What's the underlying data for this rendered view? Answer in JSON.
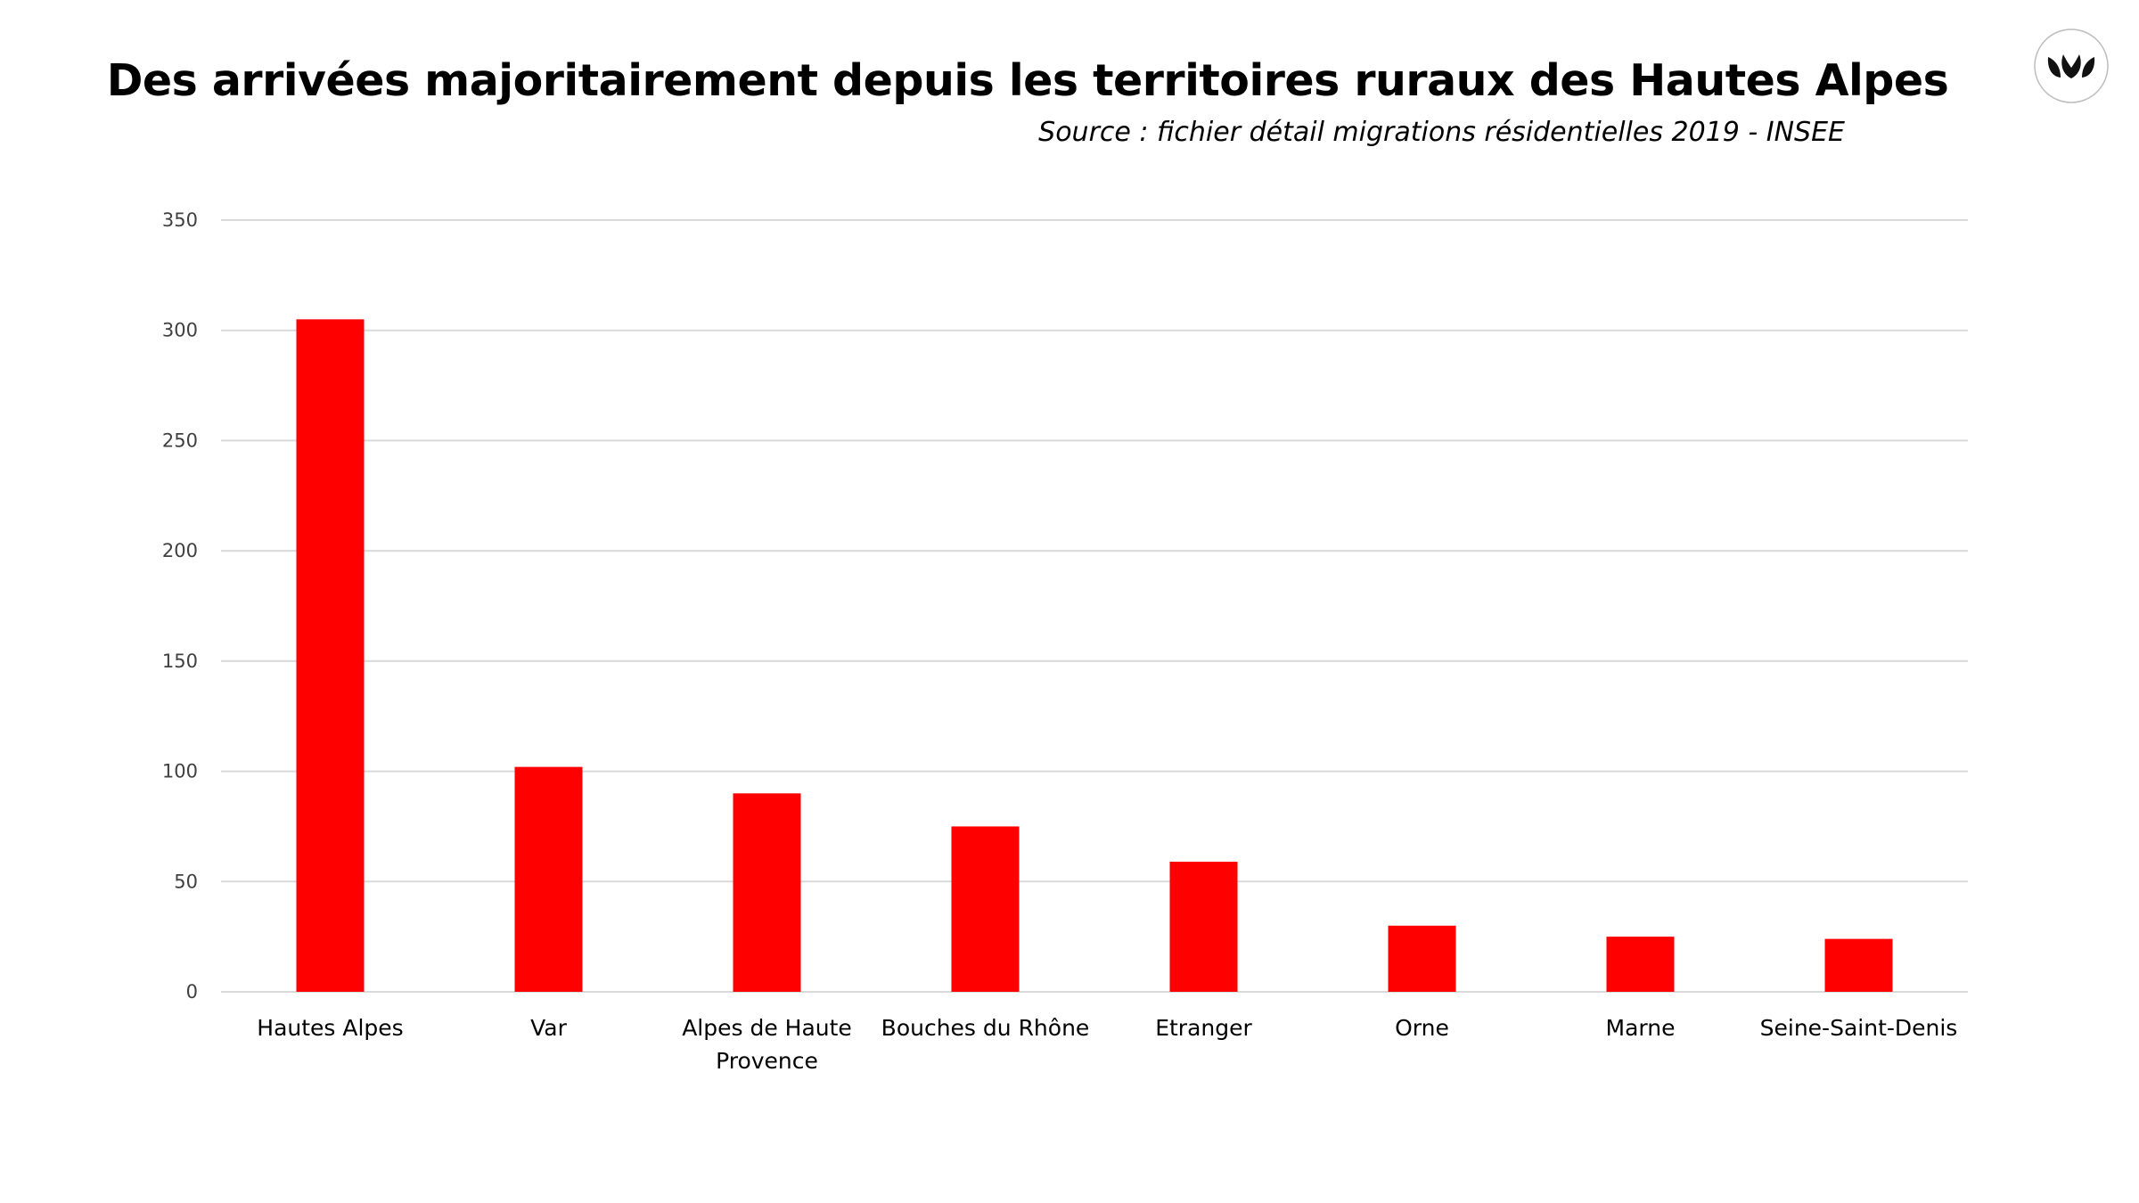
{
  "header": {
    "title": "Des arrivées majoritairement depuis les territoires ruraux des Hautes Alpes",
    "source": "Source : fichier détail migrations résidentielles 2019 - INSEE"
  },
  "logo": {
    "icon": "leaf-pair-logo-icon"
  },
  "colors": {
    "bar": "#ff0000",
    "grid": "#d9d9d9",
    "tick_text": "#404040"
  },
  "chart_data": {
    "type": "bar",
    "title": "Des arrivées majoritairement depuis les territoires ruraux des Hautes Alpes",
    "subtitle": "Source : fichier détail migrations résidentielles 2019 - INSEE",
    "xlabel": "",
    "ylabel": "",
    "categories": [
      "Hautes Alpes",
      "Var",
      "Alpes de Haute Provence",
      "Bouches du Rhône",
      "Etranger",
      "Orne",
      "Marne",
      "Seine-Saint-Denis"
    ],
    "category_lines": [
      [
        "Hautes Alpes"
      ],
      [
        "Var"
      ],
      [
        "Alpes de Haute",
        "Provence"
      ],
      [
        "Bouches du Rhône"
      ],
      [
        "Etranger"
      ],
      [
        "Orne"
      ],
      [
        "Marne"
      ],
      [
        "Seine-Saint-Denis"
      ]
    ],
    "values": [
      305,
      102,
      90,
      75,
      59,
      30,
      25,
      24
    ],
    "ylim": [
      0,
      350
    ],
    "yticks": [
      0,
      50,
      100,
      150,
      200,
      250,
      300,
      350
    ],
    "grid": true,
    "legend": "none"
  }
}
